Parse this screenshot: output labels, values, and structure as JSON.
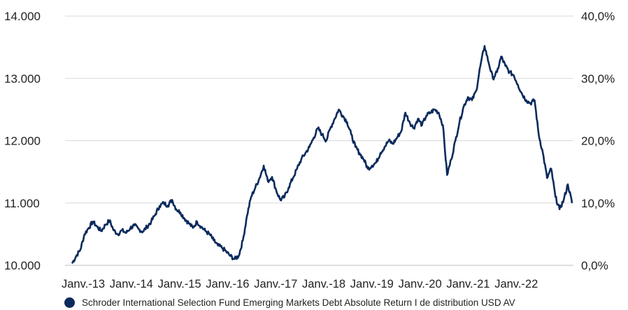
{
  "chart_data": {
    "type": "line",
    "title": "",
    "xlabel": "",
    "ylabel": "",
    "x_tick_labels": [
      "Janv.-13",
      "Janv.-14",
      "Janv.-15",
      "Janv.-16",
      "Janv.-17",
      "Janv.-18",
      "Janv.-19",
      "Janv.-20",
      "Janv.-21",
      "Janv.-22"
    ],
    "y_left": {
      "ticks": [
        "14.000",
        "13.000",
        "12.000",
        "11.000",
        "10.000"
      ],
      "tick_values": [
        14000,
        13000,
        12000,
        11000,
        10000
      ],
      "range": [
        10000,
        14000
      ]
    },
    "y_right": {
      "ticks": [
        "40,0%",
        "30,0%",
        "20,0%",
        "10,0%",
        "0,0%"
      ],
      "tick_values": [
        40,
        30,
        20,
        10,
        0
      ],
      "range": [
        0,
        40
      ]
    },
    "grid": true,
    "legend_position": "bottom",
    "series": [
      {
        "name": "Schroder International Selection Fund Emerging Markets Debt Absolute Return I de distribution USD AV",
        "color": "#0b2a5c",
        "points": [
          [
            "2012-09",
            10030
          ],
          [
            "2012-10",
            10150
          ],
          [
            "2012-11",
            10250
          ],
          [
            "2012-12",
            10500
          ],
          [
            "2013-01",
            10600
          ],
          [
            "2013-02",
            10700
          ],
          [
            "2013-03",
            10620
          ],
          [
            "2013-04",
            10550
          ],
          [
            "2013-05",
            10650
          ],
          [
            "2013-06",
            10720
          ],
          [
            "2013-07",
            10560
          ],
          [
            "2013-08",
            10500
          ],
          [
            "2013-09",
            10560
          ],
          [
            "2013-10",
            10520
          ],
          [
            "2013-11",
            10600
          ],
          [
            "2013-12",
            10640
          ],
          [
            "2014-01",
            10580
          ],
          [
            "2014-02",
            10540
          ],
          [
            "2014-03",
            10620
          ],
          [
            "2014-04",
            10700
          ],
          [
            "2014-05",
            10820
          ],
          [
            "2014-06",
            10950
          ],
          [
            "2014-07",
            11000
          ],
          [
            "2014-08",
            10960
          ],
          [
            "2014-09",
            11050
          ],
          [
            "2014-10",
            10900
          ],
          [
            "2014-11",
            10850
          ],
          [
            "2014-12",
            10750
          ],
          [
            "2015-01",
            10680
          ],
          [
            "2015-02",
            10600
          ],
          [
            "2015-03",
            10700
          ],
          [
            "2015-04",
            10620
          ],
          [
            "2015-05",
            10550
          ],
          [
            "2015-06",
            10500
          ],
          [
            "2015-07",
            10400
          ],
          [
            "2015-08",
            10320
          ],
          [
            "2015-09",
            10280
          ],
          [
            "2015-10",
            10220
          ],
          [
            "2015-11",
            10150
          ],
          [
            "2015-12",
            10100
          ],
          [
            "2016-01",
            10150
          ],
          [
            "2016-02",
            10400
          ],
          [
            "2016-03",
            10800
          ],
          [
            "2016-04",
            11100
          ],
          [
            "2016-05",
            11250
          ],
          [
            "2016-06",
            11400
          ],
          [
            "2016-07",
            11600
          ],
          [
            "2016-08",
            11350
          ],
          [
            "2016-09",
            11420
          ],
          [
            "2016-10",
            11200
          ],
          [
            "2016-11",
            11050
          ],
          [
            "2016-12",
            11100
          ],
          [
            "2017-01",
            11250
          ],
          [
            "2017-02",
            11400
          ],
          [
            "2017-03",
            11550
          ],
          [
            "2017-04",
            11700
          ],
          [
            "2017-05",
            11800
          ],
          [
            "2017-06",
            11900
          ],
          [
            "2017-07",
            12050
          ],
          [
            "2017-08",
            12200
          ],
          [
            "2017-09",
            12100
          ],
          [
            "2017-10",
            12000
          ],
          [
            "2017-11",
            12200
          ],
          [
            "2017-12",
            12350
          ],
          [
            "2018-01",
            12500
          ],
          [
            "2018-02",
            12400
          ],
          [
            "2018-03",
            12300
          ],
          [
            "2018-04",
            12100
          ],
          [
            "2018-05",
            11900
          ],
          [
            "2018-06",
            11800
          ],
          [
            "2018-07",
            11700
          ],
          [
            "2018-08",
            11550
          ],
          [
            "2018-09",
            11600
          ],
          [
            "2018-10",
            11650
          ],
          [
            "2018-11",
            11800
          ],
          [
            "2018-12",
            11900
          ],
          [
            "2019-01",
            12000
          ],
          [
            "2019-02",
            11950
          ],
          [
            "2019-03",
            12050
          ],
          [
            "2019-04",
            12150
          ],
          [
            "2019-05",
            12450
          ],
          [
            "2019-06",
            12300
          ],
          [
            "2019-07",
            12200
          ],
          [
            "2019-08",
            12350
          ],
          [
            "2019-09",
            12250
          ],
          [
            "2019-10",
            12400
          ],
          [
            "2019-11",
            12450
          ],
          [
            "2019-12",
            12500
          ],
          [
            "2020-01",
            12450
          ],
          [
            "2020-02",
            12250
          ],
          [
            "2020-03",
            11450
          ],
          [
            "2020-04",
            11700
          ],
          [
            "2020-05",
            12000
          ],
          [
            "2020-06",
            12300
          ],
          [
            "2020-07",
            12550
          ],
          [
            "2020-08",
            12700
          ],
          [
            "2020-09",
            12650
          ],
          [
            "2020-10",
            12800
          ],
          [
            "2020-11",
            13200
          ],
          [
            "2020-12",
            13520
          ],
          [
            "2021-01",
            13250
          ],
          [
            "2021-02",
            13000
          ],
          [
            "2021-03",
            13100
          ],
          [
            "2021-04",
            13350
          ],
          [
            "2021-05",
            13200
          ],
          [
            "2021-06",
            13100
          ],
          [
            "2021-07",
            13050
          ],
          [
            "2021-08",
            12900
          ],
          [
            "2021-09",
            12750
          ],
          [
            "2021-10",
            12650
          ],
          [
            "2021-11",
            12600
          ],
          [
            "2021-12",
            12650
          ],
          [
            "2022-01",
            12100
          ],
          [
            "2022-02",
            11800
          ],
          [
            "2022-03",
            11400
          ],
          [
            "2022-04",
            11550
          ],
          [
            "2022-05",
            11100
          ],
          [
            "2022-06",
            10900
          ],
          [
            "2022-07",
            11050
          ],
          [
            "2022-08",
            11300
          ],
          [
            "2022-09",
            11000
          ]
        ]
      }
    ]
  }
}
